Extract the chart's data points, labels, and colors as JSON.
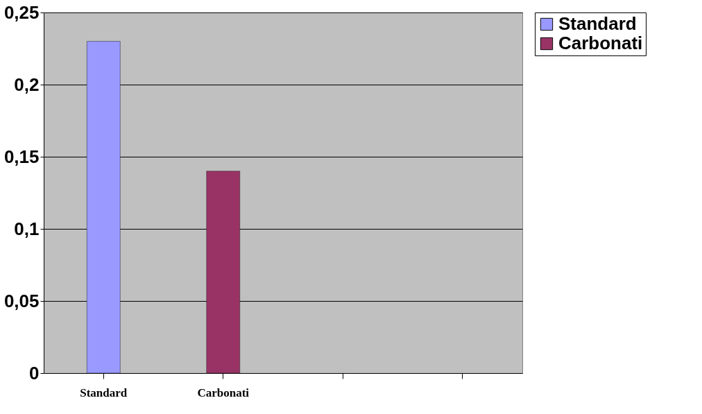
{
  "chart_data": {
    "type": "bar",
    "categories": [
      "Standard",
      "Carbonati",
      null,
      null
    ],
    "series": [
      {
        "name": "Standard",
        "color": "#9999ff",
        "values": [
          0.23,
          null,
          null,
          null
        ]
      },
      {
        "name": "Carbonati",
        "color": "#993366",
        "values": [
          null,
          0.14,
          null,
          null
        ]
      }
    ],
    "ylim": [
      0,
      0.25
    ],
    "yticks": [
      {
        "value": 0,
        "label": "0"
      },
      {
        "value": 0.05,
        "label": "0,05"
      },
      {
        "value": 0.1,
        "label": "0,1"
      },
      {
        "value": 0.15,
        "label": "0,15"
      },
      {
        "value": 0.2,
        "label": "0,2"
      },
      {
        "value": 0.25,
        "label": "0,25"
      }
    ],
    "grid": "y",
    "legend": "right"
  }
}
